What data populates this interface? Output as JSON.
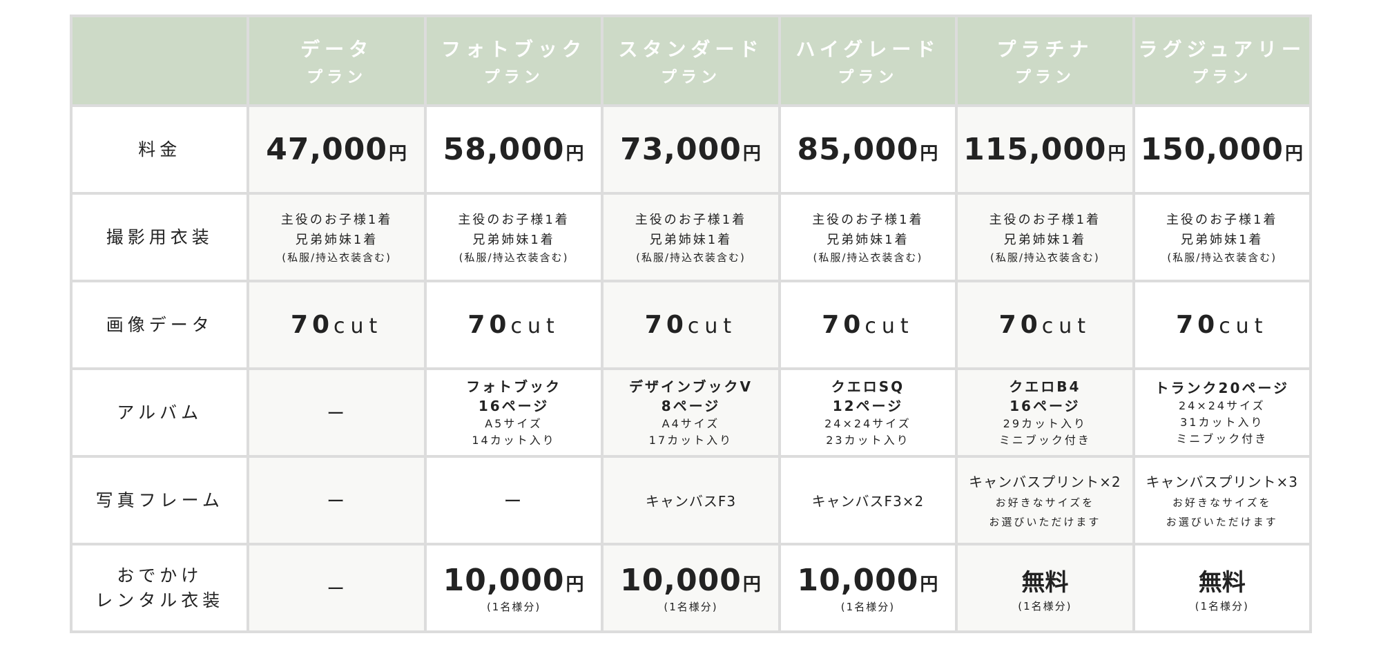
{
  "header_bg": "#cddac7",
  "plans": [
    {
      "name": "データ",
      "suffix": "プラン",
      "price": "47,000",
      "yen": "円",
      "costume": [
        "主役のお子様1着",
        "兄弟姉妹1着",
        "(私服/持込衣装含む)"
      ],
      "images": {
        "num": "70",
        "unit": "cut"
      },
      "album": {
        "title": [],
        "sub": [],
        "dash": "ー"
      },
      "frame": {
        "main": "ー",
        "sub": []
      },
      "rental": {
        "dash": "ー"
      }
    },
    {
      "name": "フォトブック",
      "suffix": "プラン",
      "price": "58,000",
      "yen": "円",
      "costume": [
        "主役のお子様1着",
        "兄弟姉妹1着",
        "(私服/持込衣装含む)"
      ],
      "images": {
        "num": "70",
        "unit": "cut"
      },
      "album": {
        "title": [
          "フォトブック",
          "16ページ"
        ],
        "sub": [
          "A5サイズ",
          "14カット入り"
        ]
      },
      "frame": {
        "main": "ー",
        "sub": []
      },
      "rental": {
        "price": "10,000",
        "yen": "円",
        "per": "(1名様分)"
      }
    },
    {
      "name": "スタンダード",
      "suffix": "プラン",
      "price": "73,000",
      "yen": "円",
      "costume": [
        "主役のお子様1着",
        "兄弟姉妹1着",
        "(私服/持込衣装含む)"
      ],
      "images": {
        "num": "70",
        "unit": "cut"
      },
      "album": {
        "title": [
          "デザインブックV",
          "8ページ"
        ],
        "sub": [
          "A4サイズ",
          "17カット入り"
        ]
      },
      "frame": {
        "main": "キャンバスF3",
        "sub": []
      },
      "rental": {
        "price": "10,000",
        "yen": "円",
        "per": "(1名様分)"
      }
    },
    {
      "name": "ハイグレード",
      "suffix": "プラン",
      "price": "85,000",
      "yen": "円",
      "costume": [
        "主役のお子様1着",
        "兄弟姉妹1着",
        "(私服/持込衣装含む)"
      ],
      "images": {
        "num": "70",
        "unit": "cut"
      },
      "album": {
        "title": [
          "クエロSQ",
          "12ページ"
        ],
        "sub": [
          "24×24サイズ",
          "23カット入り"
        ]
      },
      "frame": {
        "main": "キャンバスF3×2",
        "sub": []
      },
      "rental": {
        "price": "10,000",
        "yen": "円",
        "per": "(1名様分)"
      }
    },
    {
      "name": "プラチナ",
      "suffix": "プラン",
      "price": "115,000",
      "yen": "円",
      "costume": [
        "主役のお子様1着",
        "兄弟姉妹1着",
        "(私服/持込衣装含む)"
      ],
      "images": {
        "num": "70",
        "unit": "cut"
      },
      "album": {
        "title": [
          "クエロB4",
          "16ページ"
        ],
        "sub": [
          "29カット入り",
          "ミニブック付き"
        ]
      },
      "frame": {
        "main": "キャンバスプリント×2",
        "sub": [
          "お好きなサイズを",
          "お選びいただけます"
        ]
      },
      "rental": {
        "free": "無料",
        "per": "(1名様分)"
      }
    },
    {
      "name": "ラグジュアリー",
      "suffix": "プラン",
      "price": "150,000",
      "yen": "円",
      "costume": [
        "主役のお子様1着",
        "兄弟姉妹1着",
        "(私服/持込衣装含む)"
      ],
      "images": {
        "num": "70",
        "unit": "cut"
      },
      "album": {
        "title": [
          "トランク20ページ"
        ],
        "sub": [
          "24×24サイズ",
          "31カット入り",
          "ミニブック付き"
        ]
      },
      "frame": {
        "main": "キャンバスプリント×3",
        "sub": [
          "お好きなサイズを",
          "お選びいただけます"
        ]
      },
      "rental": {
        "free": "無料",
        "per": "(1名様分)"
      }
    }
  ],
  "rows": [
    {
      "label": [
        "料金"
      ]
    },
    {
      "label": [
        "撮影用衣装"
      ]
    },
    {
      "label": [
        "画像データ"
      ]
    },
    {
      "label": [
        "アルバム"
      ]
    },
    {
      "label": [
        "写真フレーム"
      ]
    },
    {
      "label": [
        "おでかけ",
        "レンタル衣装"
      ]
    }
  ]
}
